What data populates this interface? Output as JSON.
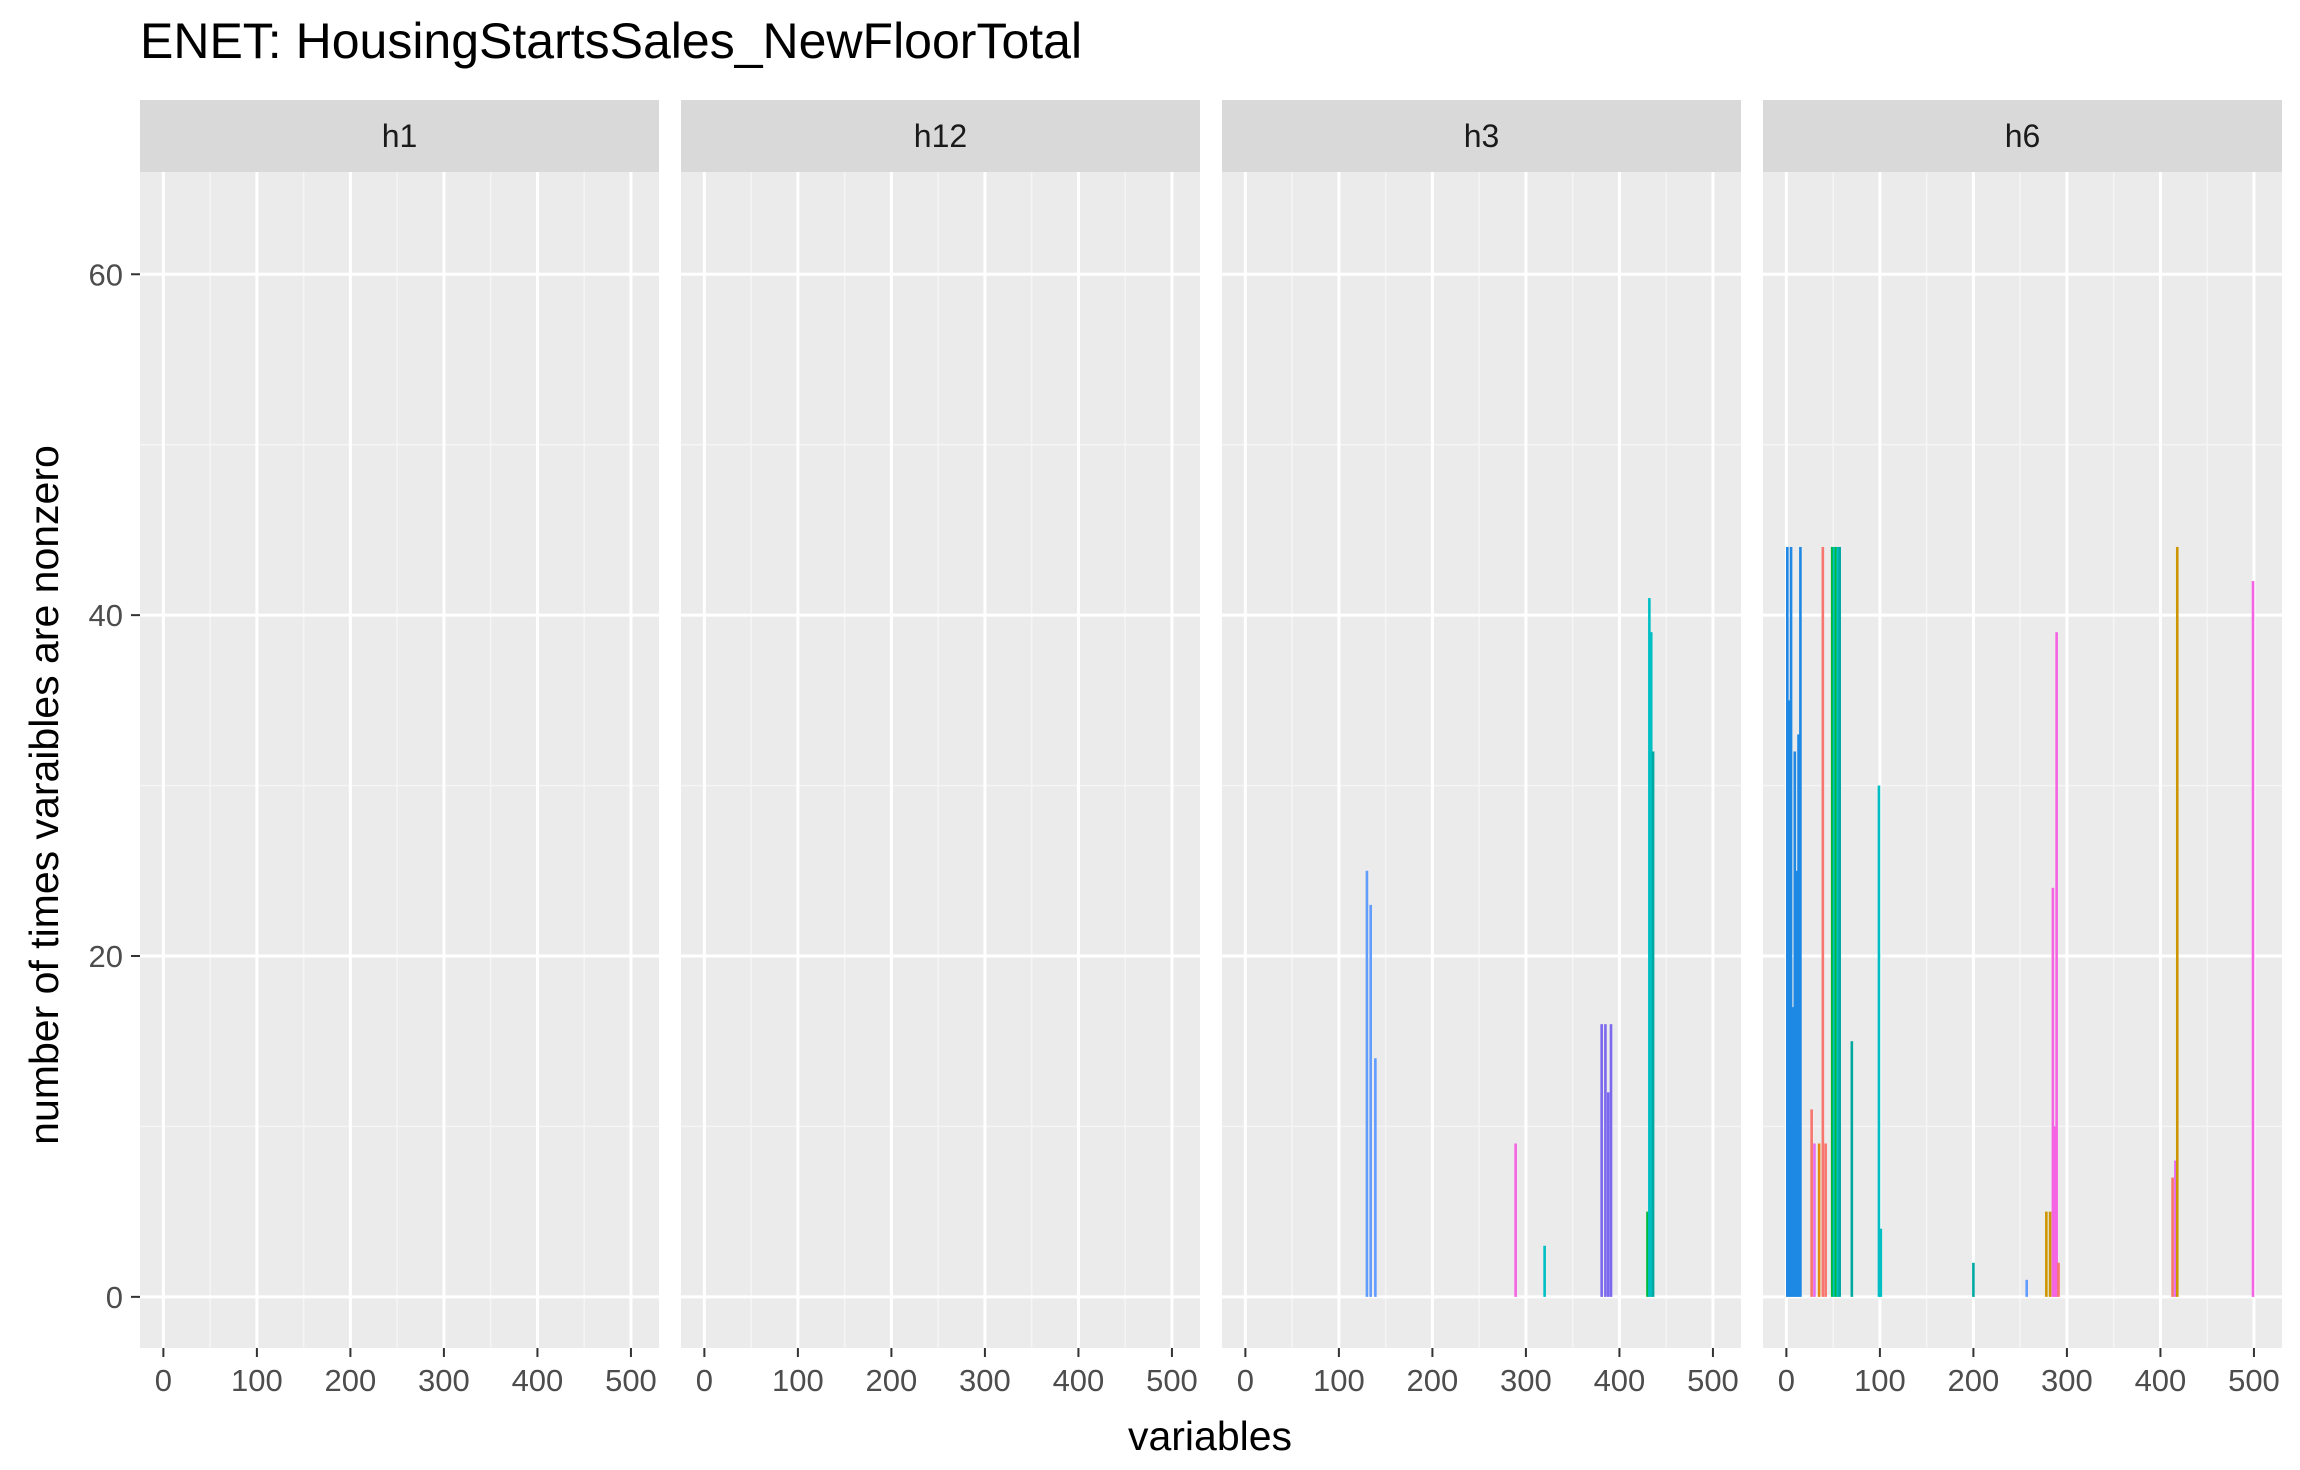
{
  "chart_data": {
    "type": "bar",
    "title": "ENET: HousingStartsSales_NewFloorTotal",
    "xlabel": "variables",
    "ylabel": "number of times varaibles are nonzero",
    "xlim": [
      -25,
      530
    ],
    "ylim": [
      -3,
      66
    ],
    "x_ticks": [
      0,
      100,
      200,
      300,
      400,
      500
    ],
    "y_ticks": [
      0,
      20,
      40,
      60
    ],
    "grid": true,
    "facets": [
      {
        "label": "h1",
        "bars": []
      },
      {
        "label": "h12",
        "bars": []
      },
      {
        "label": "h3",
        "bars": [
          {
            "x": 130,
            "value": 25,
            "color": "#619CFF"
          },
          {
            "x": 134,
            "value": 23,
            "color": "#619CFF"
          },
          {
            "x": 139,
            "value": 14,
            "color": "#619CFF"
          },
          {
            "x": 289,
            "value": 9,
            "color": "#F564E3"
          },
          {
            "x": 320,
            "value": 3,
            "color": "#00BFC4"
          },
          {
            "x": 381,
            "value": 16,
            "color": "#7B68EE"
          },
          {
            "x": 385,
            "value": 16,
            "color": "#7B68EE"
          },
          {
            "x": 388,
            "value": 12,
            "color": "#7B68EE"
          },
          {
            "x": 391,
            "value": 16,
            "color": "#7B68EE"
          },
          {
            "x": 430,
            "value": 5,
            "color": "#00BA38"
          },
          {
            "x": 432,
            "value": 41,
            "color": "#00BFC4"
          },
          {
            "x": 434,
            "value": 39,
            "color": "#00BFC4"
          },
          {
            "x": 436,
            "value": 32,
            "color": "#00A9A0"
          }
        ]
      },
      {
        "label": "h6",
        "bars": [
          {
            "x": 1,
            "value": 44,
            "color": "#1E88E5"
          },
          {
            "x": 3,
            "value": 35,
            "color": "#1E88E5"
          },
          {
            "x": 5,
            "value": 44,
            "color": "#1E88E5"
          },
          {
            "x": 7,
            "value": 17,
            "color": "#1E88E5"
          },
          {
            "x": 9,
            "value": 32,
            "color": "#1E88E5"
          },
          {
            "x": 11,
            "value": 25,
            "color": "#1E88E5"
          },
          {
            "x": 13,
            "value": 33,
            "color": "#1E88E5"
          },
          {
            "x": 15,
            "value": 44,
            "color": "#1E88E5"
          },
          {
            "x": 27,
            "value": 11,
            "color": "#F8766D"
          },
          {
            "x": 30,
            "value": 9,
            "color": "#E76BF3"
          },
          {
            "x": 35,
            "value": 9,
            "color": "#E68613"
          },
          {
            "x": 39,
            "value": 44,
            "color": "#F8766D"
          },
          {
            "x": 42,
            "value": 9,
            "color": "#F8766D"
          },
          {
            "x": 49,
            "value": 44,
            "color": "#00BA38"
          },
          {
            "x": 51,
            "value": 44,
            "color": "#00BFC4"
          },
          {
            "x": 53,
            "value": 44,
            "color": "#00BA38"
          },
          {
            "x": 55,
            "value": 44,
            "color": "#00BFC4"
          },
          {
            "x": 57,
            "value": 44,
            "color": "#00A9A0"
          },
          {
            "x": 70,
            "value": 15,
            "color": "#00A9A0"
          },
          {
            "x": 99,
            "value": 30,
            "color": "#00BFC4"
          },
          {
            "x": 101,
            "value": 4,
            "color": "#00BFC4"
          },
          {
            "x": 200,
            "value": 2,
            "color": "#00A9A0"
          },
          {
            "x": 257,
            "value": 1,
            "color": "#619CFF"
          },
          {
            "x": 278,
            "value": 5,
            "color": "#CD9600"
          },
          {
            "x": 282,
            "value": 5,
            "color": "#CD9600"
          },
          {
            "x": 285,
            "value": 24,
            "color": "#F564E3"
          },
          {
            "x": 287,
            "value": 10,
            "color": "#F564E3"
          },
          {
            "x": 289,
            "value": 39,
            "color": "#F564E3"
          },
          {
            "x": 291,
            "value": 2,
            "color": "#F8766D"
          },
          {
            "x": 413,
            "value": 7,
            "color": "#F8766D"
          },
          {
            "x": 416,
            "value": 8,
            "color": "#E76BF3"
          },
          {
            "x": 418,
            "value": 44,
            "color": "#CD9600"
          },
          {
            "x": 499,
            "value": 42,
            "color": "#F564E3"
          }
        ]
      }
    ]
  }
}
